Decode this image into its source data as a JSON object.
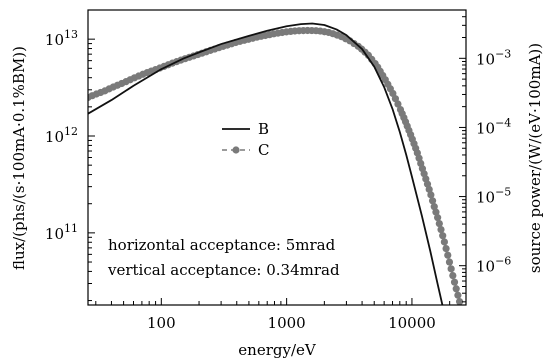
{
  "chart_data": {
    "type": "line",
    "xlabel": "energy/eV",
    "ylabel_left": "flux/(phs/(s·100mA·0.1%BM))",
    "ylabel_right": "source power/(W/(eV·100mA))",
    "x_scale": "log",
    "y_scale": "log",
    "xlim": [
      26,
      27000
    ],
    "ylim_left": [
      18000000000.0,
      20000000000000.0
    ],
    "ylim_right": [
      2.7e-07,
      0.005
    ],
    "x_ticks": [
      {
        "value": 100,
        "label": "100"
      },
      {
        "value": 1000,
        "label": "1000"
      },
      {
        "value": 10000,
        "label": "10000"
      }
    ],
    "y_ticks_left": [
      {
        "value": 100000000000.0,
        "base": "10",
        "exp": "11"
      },
      {
        "value": 1000000000000.0,
        "base": "10",
        "exp": "12"
      },
      {
        "value": 10000000000000.0,
        "base": "10",
        "exp": "13"
      }
    ],
    "y_ticks_right": [
      {
        "value": 1e-06,
        "base": "10",
        "exp": "−6"
      },
      {
        "value": 1e-05,
        "base": "10",
        "exp": "−5"
      },
      {
        "value": 0.0001,
        "base": "10",
        "exp": "−4"
      },
      {
        "value": 0.001,
        "base": "10",
        "exp": "−3"
      }
    ],
    "series": [
      {
        "name": "B",
        "style": "solid-line",
        "color": "#111111",
        "axis": "left",
        "points": [
          [
            26,
            1700000000000.0
          ],
          [
            40,
            2350000000000.0
          ],
          [
            60,
            3300000000000.0
          ],
          [
            100,
            4900000000000.0
          ],
          [
            150,
            6300000000000.0
          ],
          [
            200,
            7300000000000.0
          ],
          [
            300,
            8900000000000.0
          ],
          [
            500,
            10800000000000.0
          ],
          [
            700,
            12200000000000.0
          ],
          [
            1000,
            13600000000000.0
          ],
          [
            1300,
            14300000000000.0
          ],
          [
            1600,
            14500000000000.0
          ],
          [
            2000,
            14000000000000.0
          ],
          [
            2500,
            12600000000000.0
          ],
          [
            3000,
            11000000000000.0
          ],
          [
            4000,
            7900000000000.0
          ],
          [
            5000,
            5200000000000.0
          ],
          [
            6000,
            3200000000000.0
          ],
          [
            7000,
            1900000000000.0
          ],
          [
            8000,
            1100000000000.0
          ],
          [
            9000,
            640000000000.0
          ],
          [
            10000,
            380000000000.0
          ],
          [
            12000,
            150000000000.0
          ],
          [
            14000,
            65000000000.0
          ],
          [
            16000,
            30000000000.0
          ],
          [
            17500,
            18000000000.0
          ]
        ]
      },
      {
        "name": "C",
        "style": "dashed-line-circle-markers",
        "color": "#7a7a7a",
        "axis": "left",
        "points": [
          [
            26,
            2500000000000.0
          ],
          [
            30,
            2700000000000.0
          ],
          [
            35,
            2900000000000.0
          ],
          [
            40,
            3150000000000.0
          ],
          [
            50,
            3550000000000.0
          ],
          [
            60,
            3950000000000.0
          ],
          [
            70,
            4300000000000.0
          ],
          [
            80,
            4600000000000.0
          ],
          [
            100,
            5100000000000.0
          ],
          [
            120,
            5600000000000.0
          ],
          [
            150,
            6200000000000.0
          ],
          [
            200,
            7000000000000.0
          ],
          [
            250,
            7700000000000.0
          ],
          [
            300,
            8300000000000.0
          ],
          [
            400,
            9300000000000.0
          ],
          [
            500,
            10000000000000.0
          ],
          [
            600,
            10600000000000.0
          ],
          [
            700,
            11000000000000.0
          ],
          [
            800,
            11400000000000.0
          ],
          [
            1000,
            11900000000000.0
          ],
          [
            1200,
            12200000000000.0
          ],
          [
            1500,
            12300000000000.0
          ],
          [
            1800,
            12200000000000.0
          ],
          [
            2200,
            11700000000000.0
          ],
          [
            2700,
            10700000000000.0
          ],
          [
            3200,
            9600000000000.0
          ],
          [
            3800,
            8300000000000.0
          ],
          [
            4500,
            6800000000000.0
          ],
          [
            5200,
            5400000000000.0
          ],
          [
            6000,
            4000000000000.0
          ],
          [
            7000,
            2800000000000.0
          ],
          [
            8000,
            1950000000000.0
          ],
          [
            9000,
            1350000000000.0
          ],
          [
            10000,
            950000000000.0
          ],
          [
            11000,
            680000000000.0
          ],
          [
            12000,
            480000000000.0
          ],
          [
            13000,
            350000000000.0
          ],
          [
            14000,
            260000000000.0
          ],
          [
            15000,
            190000000000.0
          ],
          [
            16000,
            145000000000.0
          ],
          [
            17000,
            110000000000.0
          ],
          [
            18000,
            84000000000.0
          ],
          [
            19000,
            64000000000.0
          ],
          [
            20000,
            49000000000.0
          ],
          [
            21000,
            38000000000.0
          ],
          [
            22000,
            30000000000.0
          ],
          [
            23000,
            24000000000.0
          ],
          [
            24000,
            19500000000.0
          ]
        ]
      }
    ],
    "annotations": [
      "horizontal acceptance: 5mrad",
      "vertical acceptance: 0.34mrad"
    ],
    "legend_position": "center-left",
    "grid": false
  }
}
